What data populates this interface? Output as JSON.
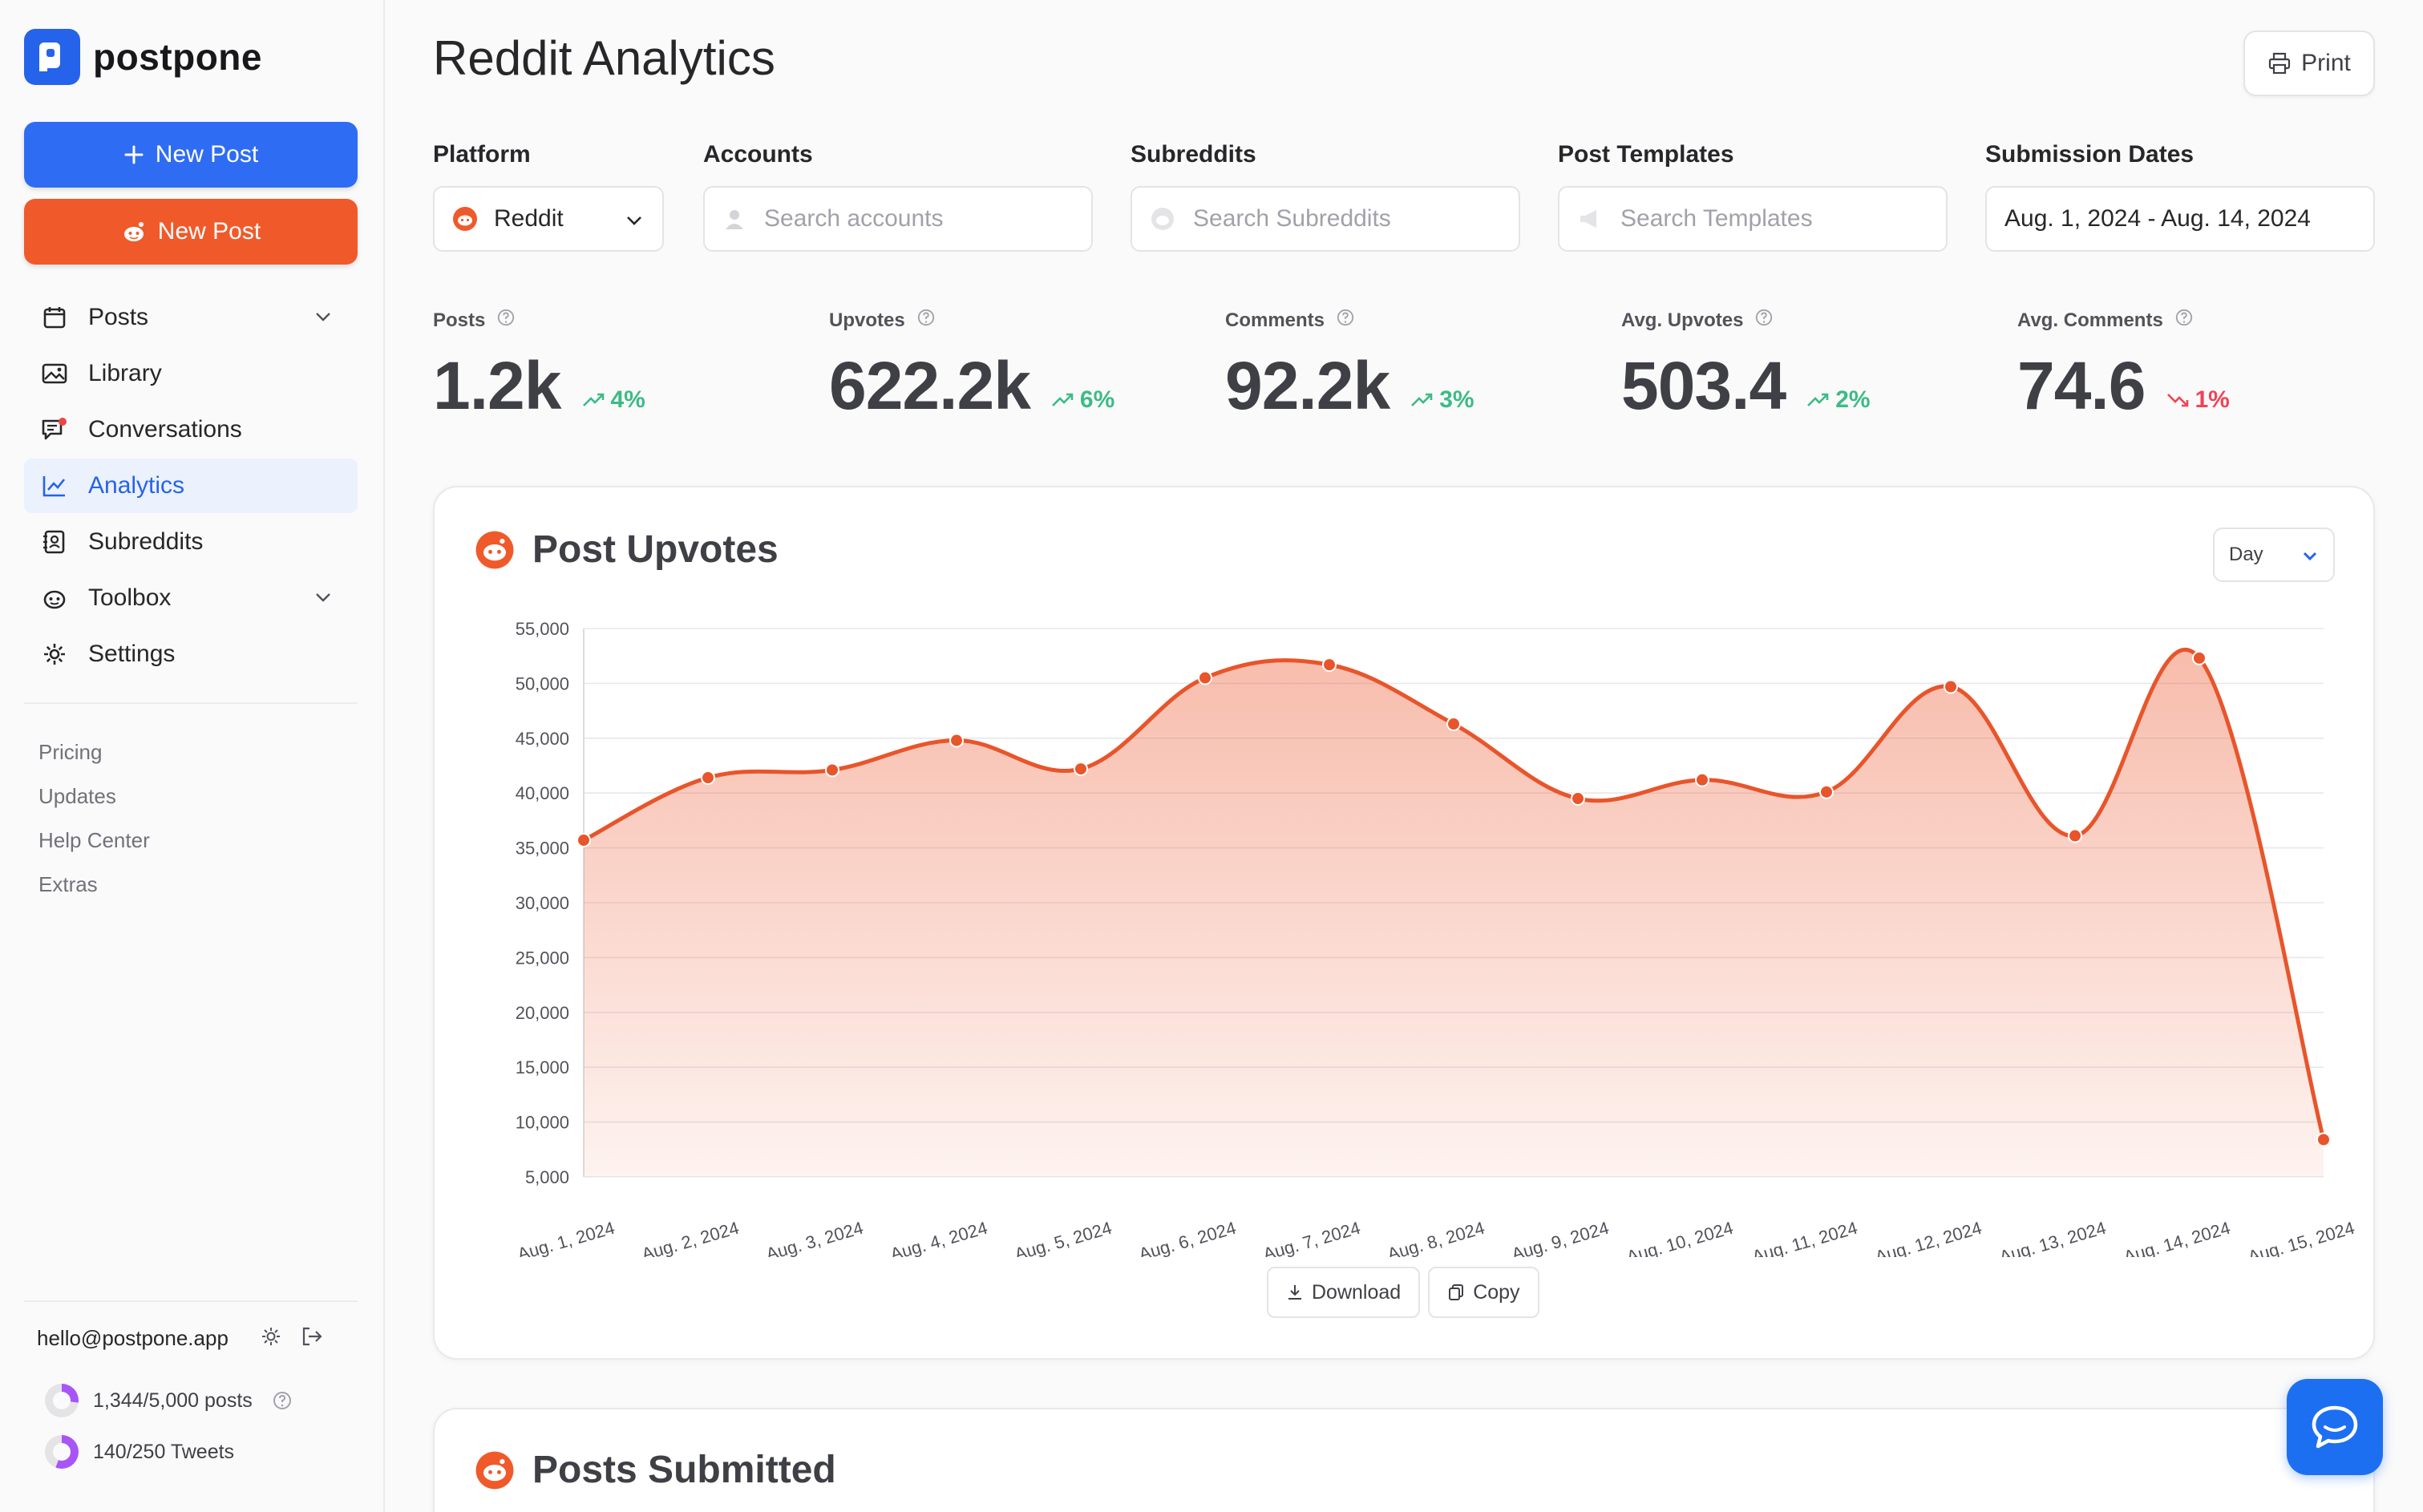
{
  "app": {
    "brand": "postpone",
    "accent": "#2f6cf4",
    "reddit_color": "#f05a2a"
  },
  "sidebar": {
    "new_post_blue": "New Post",
    "new_post_reddit": "New Post",
    "items": [
      {
        "label": "Posts",
        "icon": "calendar-icon",
        "has_chevron": true
      },
      {
        "label": "Library",
        "icon": "image-icon"
      },
      {
        "label": "Conversations",
        "icon": "chat-icon",
        "has_badge": true
      },
      {
        "label": "Analytics",
        "icon": "chart-line-icon",
        "active": true
      },
      {
        "label": "Subreddits",
        "icon": "contact-book-icon"
      },
      {
        "label": "Toolbox",
        "icon": "reddit-icon",
        "has_chevron": true
      },
      {
        "label": "Settings",
        "icon": "gear-icon"
      }
    ],
    "links": [
      "Pricing",
      "Updates",
      "Help Center",
      "Extras"
    ],
    "user_email": "hello@postpone.app",
    "quota_posts": "1,344/5,000 posts",
    "quota_posts_fraction": 0.27,
    "quota_tweets": "140/250 Tweets",
    "quota_tweets_fraction": 0.56
  },
  "header": {
    "title": "Reddit Analytics",
    "print_label": "Print"
  },
  "filters": {
    "platform": {
      "label": "Platform",
      "value": "Reddit"
    },
    "accounts": {
      "label": "Accounts",
      "placeholder": "Search accounts"
    },
    "subreddits": {
      "label": "Subreddits",
      "placeholder": "Search Subreddits"
    },
    "templates": {
      "label": "Post Templates",
      "placeholder": "Search Templates"
    },
    "dates": {
      "label": "Submission Dates",
      "value": "Aug. 1, 2024 - Aug. 14, 2024"
    }
  },
  "stats": [
    {
      "label": "Posts",
      "value": "1.2k",
      "trend": "4%",
      "direction": "up"
    },
    {
      "label": "Upvotes",
      "value": "622.2k",
      "trend": "6%",
      "direction": "up"
    },
    {
      "label": "Comments",
      "value": "92.2k",
      "trend": "3%",
      "direction": "up"
    },
    {
      "label": "Avg. Upvotes",
      "value": "503.4",
      "trend": "2%",
      "direction": "up"
    },
    {
      "label": "Avg. Comments",
      "value": "74.6",
      "trend": "1%",
      "direction": "down"
    }
  ],
  "upvotes_card": {
    "title": "Post Upvotes",
    "granularity": "Day",
    "download_label": "Download",
    "copy_label": "Copy"
  },
  "chart_data": {
    "type": "area",
    "title": "Post Upvotes",
    "categories": [
      "Aug. 1, 2024",
      "Aug. 2, 2024",
      "Aug. 3, 2024",
      "Aug. 4, 2024",
      "Aug. 5, 2024",
      "Aug. 6, 2024",
      "Aug. 7, 2024",
      "Aug. 8, 2024",
      "Aug. 9, 2024",
      "Aug. 10, 2024",
      "Aug. 11, 2024",
      "Aug. 12, 2024",
      "Aug. 13, 2024",
      "Aug. 14, 2024",
      "Aug. 15, 2024"
    ],
    "values": [
      35700,
      41400,
      42100,
      44800,
      42200,
      50500,
      51700,
      46300,
      39500,
      41200,
      40100,
      49700,
      36100,
      52300,
      8400
    ],
    "yticks": [
      5000,
      10000,
      15000,
      20000,
      25000,
      30000,
      35000,
      40000,
      45000,
      50000,
      55000
    ],
    "ytick_labels": [
      "5,000",
      "10,000",
      "15,000",
      "20,000",
      "25,000",
      "30,000",
      "35,000",
      "40,000",
      "45,000",
      "50,000",
      "55,000"
    ],
    "ylim": [
      5000,
      55000
    ],
    "grid": true,
    "color": "#e8552b"
  },
  "submitted_card": {
    "title": "Posts Submitted"
  }
}
